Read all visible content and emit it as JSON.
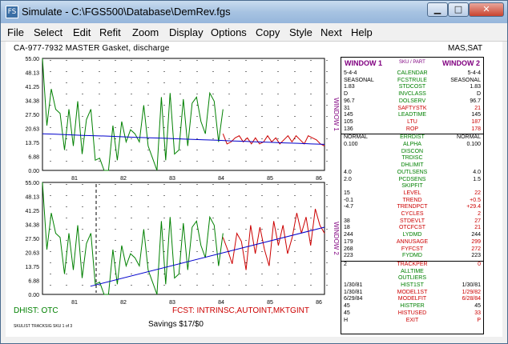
{
  "window": {
    "title": "Simulate - C:\\FGS500\\Database\\DemRev.fgs",
    "icon": "app-icon"
  },
  "menu": [
    "File",
    "Select",
    "Edit",
    "Refit",
    "Zoom",
    "Display",
    "Options",
    "Copy",
    "Style",
    "Next",
    "Help"
  ],
  "header": {
    "left": "CA-977-7932 MASTER Gasket, discharge",
    "right": "MAS,SAT"
  },
  "charts": {
    "y_ticks": [
      "55.00",
      "48.13",
      "41.25",
      "34.38",
      "27.50",
      "20.63",
      "13.75",
      "6.88",
      "0.00"
    ],
    "x_ticks": [
      "81",
      "82",
      "83",
      "84",
      "85",
      "86"
    ],
    "window1_label": "WINDOW 1",
    "window2_label": "WINDOW 2"
  },
  "chart_data": [
    {
      "type": "line",
      "title": "",
      "xlabel": "",
      "ylabel": "WINDOW 1",
      "ylim": [
        0,
        55
      ],
      "x_ticks": [
        "81",
        "82",
        "83",
        "84",
        "85",
        "86"
      ],
      "series": [
        {
          "values": [
            55,
            22,
            40,
            30,
            28,
            10,
            30,
            12,
            34,
            8,
            25,
            30,
            5,
            6,
            0,
            0,
            22,
            5,
            24,
            14,
            20,
            18,
            14,
            32,
            12,
            6,
            0,
            36,
            5,
            38,
            8,
            10,
            35,
            12,
            33,
            36,
            24,
            18,
            38,
            34,
            14,
            30
          ]
        },
        {
          "values": [
            18,
            13,
            14,
            16,
            17,
            14,
            16,
            13,
            16,
            13,
            14,
            17,
            14,
            16,
            13,
            15,
            17,
            14,
            17,
            15,
            13,
            17,
            16,
            15,
            13,
            12
          ]
        },
        {
          "values": [
            18.0,
            17.8,
            17.5,
            17.2,
            17.0,
            16.8,
            16.5,
            16.2,
            16.0,
            15.8,
            15.5,
            15.3,
            15.0,
            14.8,
            14.5,
            14.3,
            14.0,
            13.8,
            13.5,
            13.3,
            13.0,
            12.8
          ]
        }
      ]
    },
    {
      "type": "line",
      "title": "",
      "xlabel": "",
      "ylabel": "WINDOW 2",
      "ylim": [
        0,
        55
      ],
      "x_ticks": [
        "81",
        "82",
        "83",
        "84",
        "85",
        "86"
      ],
      "series": [
        {
          "values": [
            55,
            22,
            40,
            30,
            28,
            10,
            30,
            12,
            34,
            8,
            25,
            30,
            5,
            6,
            0,
            0,
            22,
            5,
            24,
            14,
            20,
            18,
            14,
            32,
            12,
            6,
            0,
            36,
            5,
            38,
            8,
            10,
            35,
            12,
            33,
            36,
            24,
            18,
            38,
            34,
            14,
            30
          ]
        },
        {
          "values": [
            28,
            22,
            15,
            30,
            26,
            12,
            34,
            20,
            33,
            22,
            14,
            36,
            24,
            34,
            20,
            28,
            40,
            30,
            38,
            24,
            42,
            34,
            30
          ]
        },
        {
          "values": [
            4,
            33
          ]
        }
      ]
    }
  ],
  "panel": {
    "window1": "WINDOW 1",
    "window2": "WINDOW 2",
    "sku_part": "SKU / PART",
    "rows": [
      {
        "l": "5-4-4",
        "c": "CALENDAR",
        "r": "5-4-4",
        "rc": "#000000"
      },
      {
        "l": "SEASONAL",
        "c": "FCSTRULE",
        "r": "SEASONAL",
        "rc": "#000000"
      },
      {
        "l": "1.83",
        "c": "STDCOST",
        "r": "1.83",
        "rc": "#000000"
      },
      {
        "l": "D",
        "c": "INVCLASS",
        "r": "D",
        "rc": "#000000"
      },
      {
        "l": "96.7",
        "c": "DOLSERV",
        "r": "96.7",
        "rc": "#000000"
      },
      {
        "l": "31",
        "c": "SAFTYSTK",
        "r": "21",
        "rc": "#cc0000"
      },
      {
        "l": "145",
        "c": "LEADTIME",
        "r": "145",
        "rc": "#000000"
      },
      {
        "l": "105",
        "c": "LTU",
        "r": "187",
        "rc": "#cc0000"
      },
      {
        "l": "136",
        "c": "ROP",
        "r": "178",
        "rc": "#cc0000"
      },
      {
        "l": "NORMAL",
        "c": "ERRDIST",
        "r": "NORMAL",
        "rc": "#000000"
      },
      {
        "l": "0.100",
        "c": "ALPHA",
        "r": "0.100",
        "rc": "#000000"
      },
      {
        "l": "",
        "c": "DISCON",
        "r": "",
        "rc": "#000000"
      },
      {
        "l": "",
        "c": "TRDISC",
        "r": "",
        "rc": "#000000"
      },
      {
        "l": "",
        "c": "DHLIMIT",
        "r": "",
        "rc": "#000000"
      },
      {
        "l": "4.0",
        "c": "OUTLSENS",
        "r": "4.0",
        "rc": "#000000"
      },
      {
        "l": "2.0",
        "c": "PCDSENS",
        "r": "1.5",
        "rc": "#000000"
      },
      {
        "l": "",
        "c": "SKIPFIT",
        "r": "",
        "rc": "#000000"
      },
      {
        "l": "15",
        "c": "LEVEL",
        "r": "22",
        "rc": "#cc0000"
      },
      {
        "l": "-0.1",
        "c": "TREND",
        "r": "+0.5",
        "rc": "#cc0000"
      },
      {
        "l": "-4.7",
        "c": "TRENDPCT",
        "r": "+29.4",
        "rc": "#cc0000"
      },
      {
        "l": "",
        "c": "CYCLES",
        "r": "2",
        "rc": "#cc0000"
      },
      {
        "l": "38",
        "c": "STDEVLT",
        "r": "27",
        "rc": "#cc0000"
      },
      {
        "l": "18",
        "c": "OTCFCST",
        "r": "21",
        "rc": "#cc0000"
      },
      {
        "l": "244",
        "c": "LYDMD",
        "r": "244",
        "rc": "#000000"
      },
      {
        "l": "179",
        "c": "ANNUSAGE",
        "r": "299",
        "rc": "#cc0000"
      },
      {
        "l": "268",
        "c": "FYFCST",
        "r": "272",
        "rc": "#cc0000"
      },
      {
        "l": "223",
        "c": "FYDMD",
        "r": "223",
        "rc": "#000000"
      },
      {
        "l": "2",
        "c": "TRACKPER",
        "r": "0",
        "rc": "#cc0000"
      },
      {
        "l": "",
        "c": "ALLTIME",
        "r": "",
        "rc": "#000000"
      },
      {
        "l": "",
        "c": "OUTLIERS",
        "r": "",
        "rc": "#000000"
      },
      {
        "l": "1/30/81",
        "c": "HIST1ST",
        "r": "1/30/81",
        "rc": "#000000"
      },
      {
        "l": "1/30/81",
        "c": "MODEL1ST",
        "r": "1/29/82",
        "rc": "#cc0000"
      },
      {
        "l": "6/29/84",
        "c": "MODELFIT",
        "r": "6/28/84",
        "rc": "#cc0000"
      },
      {
        "l": "45",
        "c": "HISTPER",
        "r": "45",
        "rc": "#000000"
      },
      {
        "l": "45",
        "c": "HISTUSED",
        "r": "33",
        "rc": "#cc0000"
      },
      {
        "l": "H",
        "c": "EXIT",
        "r": "P",
        "rc": "#cc0000"
      }
    ]
  },
  "footer": {
    "dhist": "DHIST: OTC",
    "fcst": "FCST: INTRINSC,AUTOINT,MKTGINT",
    "small": "SKULIST TRACKSIG SKU 1 of 3",
    "savings": "Savings $17/$0"
  },
  "colors": {
    "history": "#008000",
    "forecast": "#cc0000",
    "fit": "#0000cc",
    "label_purple": "#800080"
  }
}
